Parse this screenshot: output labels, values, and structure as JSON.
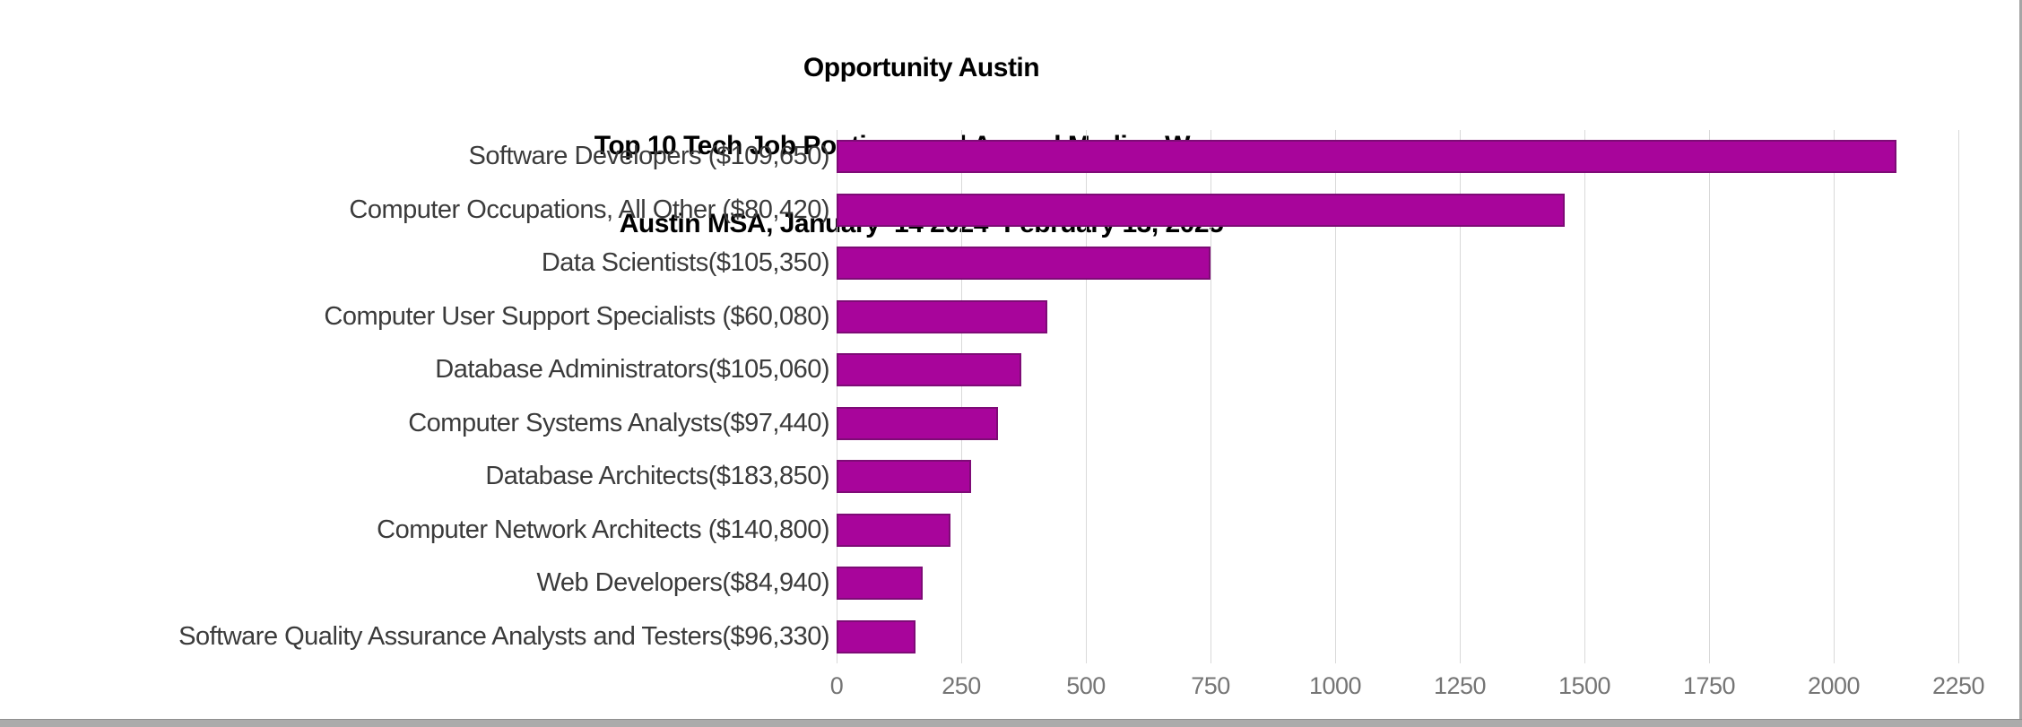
{
  "title": {
    "line1": "Opportunity Austin",
    "line2": "Top 10 Tech Job Postings and Annual Median Wages",
    "line3": "Austin MSA, January  14 2024- February 13, 2025"
  },
  "chart_data": {
    "type": "bar",
    "orientation": "horizontal",
    "title": "Opportunity Austin",
    "subtitle": "Top 10 Tech Job Postings and Annual Median Wages",
    "subtitle2": "Austin MSA, January 14 2024- February 13, 2025",
    "categories": [
      "Software Developers ($109,650)",
      "Computer Occupations, All Other ($80,420)",
      "Data Scientists($105,350)",
      "Computer User Support Specialists ($60,080)",
      "Database Administrators($105,060)",
      "Computer Systems Analysts($97,440)",
      "Database Architects($183,850)",
      "Computer Network Architects ($140,800)",
      "Web Developers($84,940)",
      "Software Quality Assurance Analysts and Testers($96,330)"
    ],
    "values": [
      2125,
      1460,
      750,
      423,
      371,
      324,
      269,
      228,
      172,
      158
    ],
    "x_ticks": [
      0,
      250,
      500,
      750,
      1000,
      1250,
      1500,
      1750,
      2000,
      2250
    ],
    "xlim": [
      0,
      2250
    ],
    "xlabel": "",
    "ylabel": "",
    "grid": true,
    "legend_position": "none",
    "colors": {
      "bar_fill": "#A8059B",
      "bar_border": "#7E0B76",
      "gridline": "#D9D9D9",
      "tick_label": "#757575",
      "category_label": "#3B3B3B",
      "title_text": "#000000"
    }
  }
}
